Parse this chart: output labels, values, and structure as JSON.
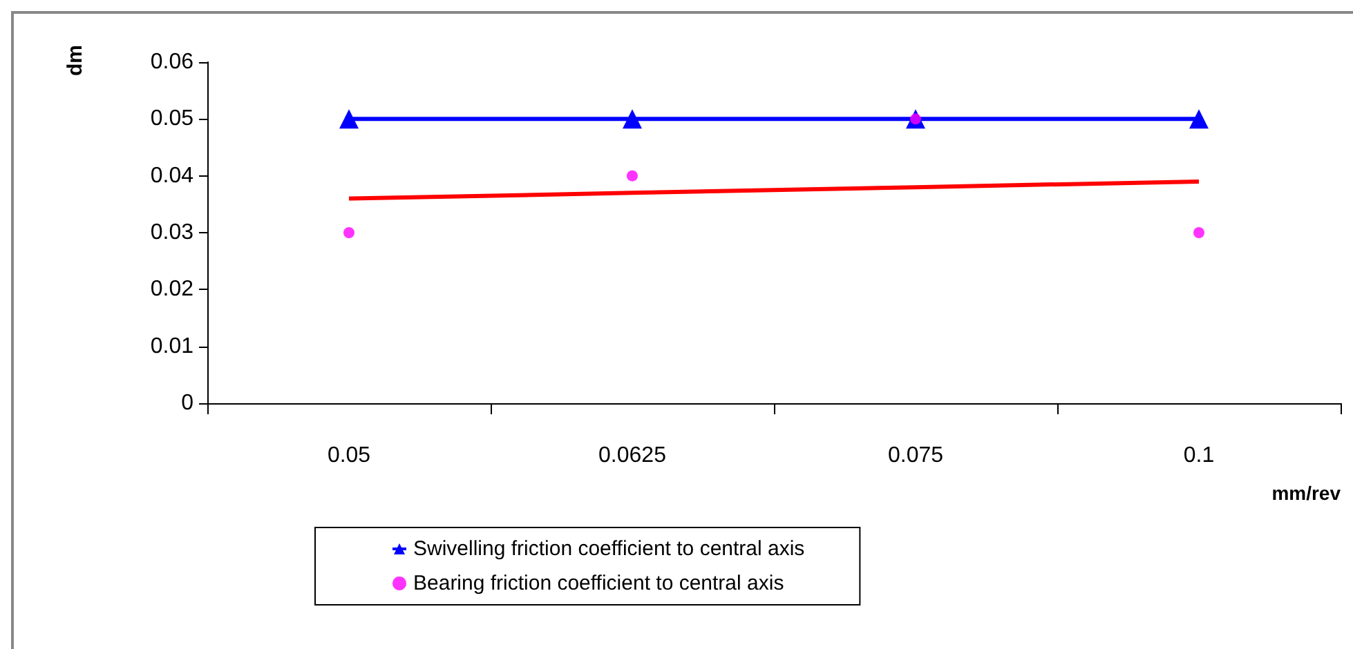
{
  "chart_data": {
    "type": "line",
    "xlabel": "mm/rev",
    "ylabel": "dm",
    "categories": [
      "0.05",
      "0.0625",
      "0.075",
      "0.1"
    ],
    "series": [
      {
        "name": "Swivelling friction coefficient to central axis",
        "color": "#0000ff",
        "marker": "triangle",
        "values": [
          0.05,
          0.05,
          0.05,
          0.05
        ]
      },
      {
        "name": "Bearing friction coefficient to central axis",
        "type": "scatter",
        "color": "#ff00ff",
        "marker": "circle",
        "values": [
          0.03,
          0.04,
          0.05,
          0.03
        ]
      },
      {
        "color": "#ff0000",
        "marker": "none",
        "values": [
          0.036,
          0.037,
          0.038,
          0.039
        ]
      }
    ],
    "ylim": [
      0,
      0.06
    ],
    "yticks": [
      0,
      0.01,
      0.02,
      0.03,
      0.04,
      0.05,
      0.06
    ],
    "grid": false,
    "legend": "bottom"
  }
}
